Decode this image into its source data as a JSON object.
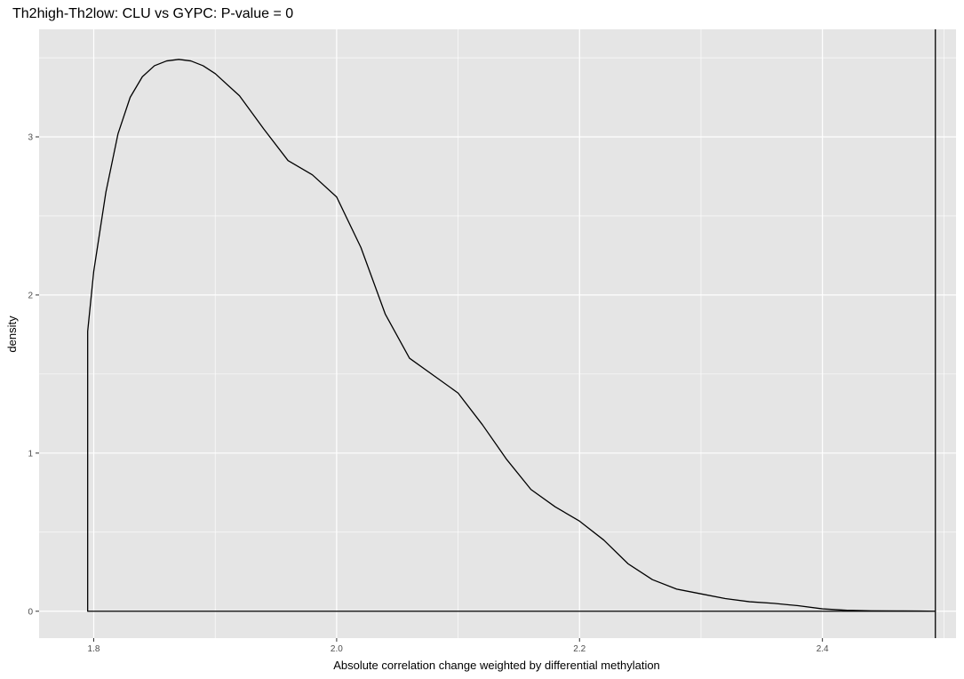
{
  "chart_data": {
    "type": "area",
    "title": "Th2high-Th2low: CLU vs GYPC: P-value = 0",
    "xlabel": "Absolute correlation change weighted by differential methylation",
    "ylabel": "density",
    "xlim": [
      1.755,
      2.51
    ],
    "ylim": [
      -0.17,
      3.68
    ],
    "x_ticks": [
      1.8,
      2.0,
      2.2,
      2.4
    ],
    "x_tick_labels": [
      "1.8",
      "2.0",
      "2.2",
      "2.4"
    ],
    "y_ticks": [
      0,
      1,
      2,
      3
    ],
    "y_tick_labels": [
      "0",
      "1",
      "2",
      "3"
    ],
    "grid": true,
    "legend": "none",
    "background": "#e5e5e5",
    "grid_color": "#ffffff",
    "line_color": "#000000",
    "series": [
      {
        "x": [
          1.795,
          1.8,
          1.81,
          1.82,
          1.83,
          1.84,
          1.85,
          1.86,
          1.87,
          1.88,
          1.89,
          1.9,
          1.92,
          1.94,
          1.96,
          1.98,
          2.0,
          2.02,
          2.04,
          2.06,
          2.08,
          2.1,
          2.12,
          2.14,
          2.16,
          2.18,
          2.2,
          2.22,
          2.24,
          2.26,
          2.28,
          2.3,
          2.32,
          2.34,
          2.36,
          2.38,
          2.4,
          2.42,
          2.44,
          2.46,
          2.48,
          2.493
        ],
        "y": [
          1.77,
          2.15,
          2.65,
          3.02,
          3.25,
          3.38,
          3.45,
          3.48,
          3.49,
          3.48,
          3.45,
          3.4,
          3.26,
          3.05,
          2.85,
          2.76,
          2.62,
          2.3,
          1.88,
          1.6,
          1.49,
          1.38,
          1.18,
          0.96,
          0.77,
          0.66,
          0.57,
          0.45,
          0.3,
          0.2,
          0.14,
          0.11,
          0.08,
          0.06,
          0.05,
          0.035,
          0.015,
          0.006,
          0.003,
          0.002,
          0.001,
          0
        ]
      }
    ],
    "vline_x": 2.493
  }
}
